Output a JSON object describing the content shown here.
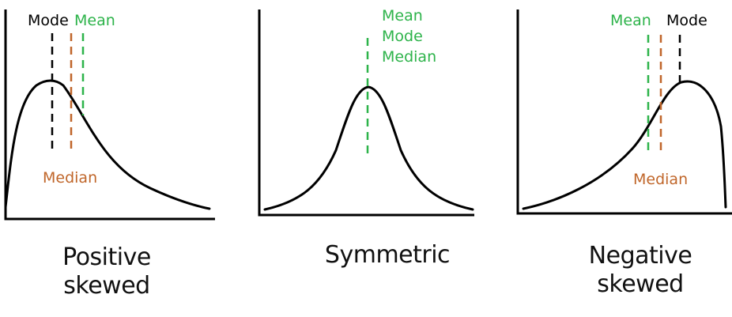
{
  "colors": {
    "line": "#000000",
    "mean": "#2db34a",
    "median": "#c0662a",
    "mode": "#000000"
  },
  "panels": [
    {
      "key": "positive",
      "caption_line1": "Positive",
      "caption_line2": "skewed",
      "labels": {
        "mode": "Mode",
        "mean": "Mean",
        "median": "Median"
      }
    },
    {
      "key": "symmetric",
      "caption_line1": "Symmetric",
      "labels": {
        "mean": "Mean",
        "mode": "Mode",
        "median": "Median"
      }
    },
    {
      "key": "negative",
      "caption_line1": "Negative",
      "caption_line2": "skewed",
      "labels": {
        "mean": "Mean",
        "mode": "Mode",
        "median": "Median"
      }
    }
  ]
}
